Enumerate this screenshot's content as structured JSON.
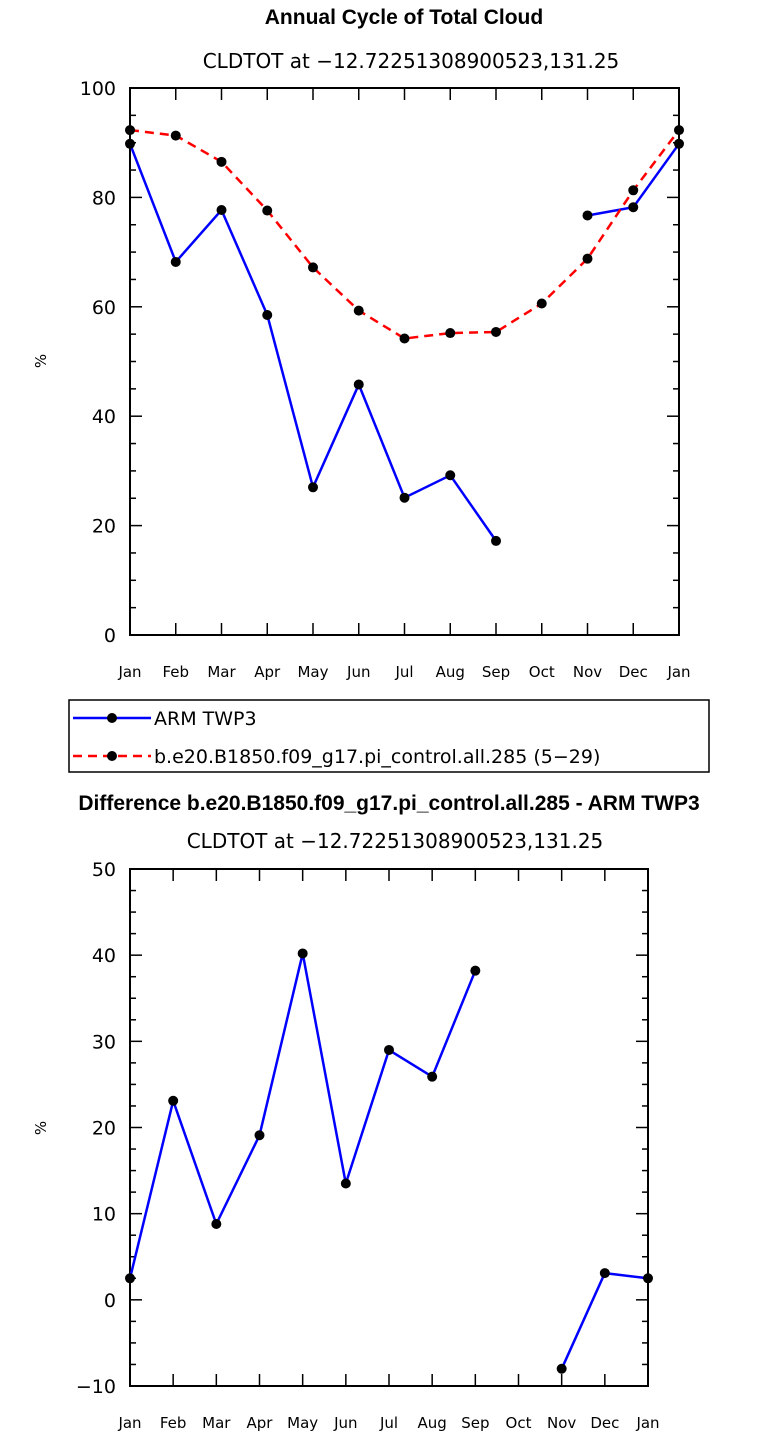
{
  "chart_data": [
    {
      "type": "line",
      "title": "Annual Cycle of Total Cloud",
      "subtitle": "CLDTOT at −12.72251308900523,131.25",
      "xlabel": "",
      "ylabel": "%",
      "ylim": [
        0,
        100
      ],
      "yticks": [
        0,
        20,
        40,
        60,
        80,
        100
      ],
      "ytick_labels": [
        "0",
        "20",
        "40",
        "60",
        "80",
        "100"
      ],
      "categories": [
        "Jan",
        "Feb",
        "Mar",
        "Apr",
        "May",
        "Jun",
        "Jul",
        "Aug",
        "Sep",
        "Oct",
        "Nov",
        "Dec",
        "Jan"
      ],
      "grid": false,
      "legend_position": "below",
      "series": [
        {
          "name": "ARM TWP3",
          "color": "#0000ff",
          "dash": "solid",
          "values": [
            89.8,
            68.2,
            77.7,
            58.5,
            27.0,
            45.8,
            25.1,
            29.2,
            17.2,
            null,
            76.7,
            78.2,
            89.8
          ]
        },
        {
          "name": "b.e20.B1850.f09_g17.pi_control.all.285 (5−29)",
          "color": "#ff0000",
          "dash": "dashed",
          "values": [
            92.3,
            91.3,
            86.5,
            77.6,
            67.2,
            59.3,
            54.2,
            55.2,
            55.4,
            60.6,
            68.8,
            81.3,
            92.3
          ]
        }
      ]
    },
    {
      "type": "line",
      "title": "Difference b.e20.B1850.f09_g17.pi_control.all.285 - ARM TWP3",
      "subtitle": "CLDTOT at −12.72251308900523,131.25",
      "xlabel": "",
      "ylabel": "%",
      "ylim": [
        -10,
        50
      ],
      "yticks": [
        -10,
        0,
        10,
        20,
        30,
        40,
        50
      ],
      "ytick_labels": [
        "−10",
        "0",
        "10",
        "20",
        "30",
        "40",
        "50"
      ],
      "categories": [
        "Jan",
        "Feb",
        "Mar",
        "Apr",
        "May",
        "Jun",
        "Jul",
        "Aug",
        "Sep",
        "Oct",
        "Nov",
        "Dec",
        "Jan"
      ],
      "grid": false,
      "series": [
        {
          "name": "Difference",
          "color": "#0000ff",
          "dash": "solid",
          "values": [
            2.5,
            23.1,
            8.8,
            19.1,
            40.2,
            13.5,
            29.0,
            25.9,
            38.2,
            null,
            -8.0,
            3.1,
            2.5
          ]
        }
      ]
    }
  ]
}
